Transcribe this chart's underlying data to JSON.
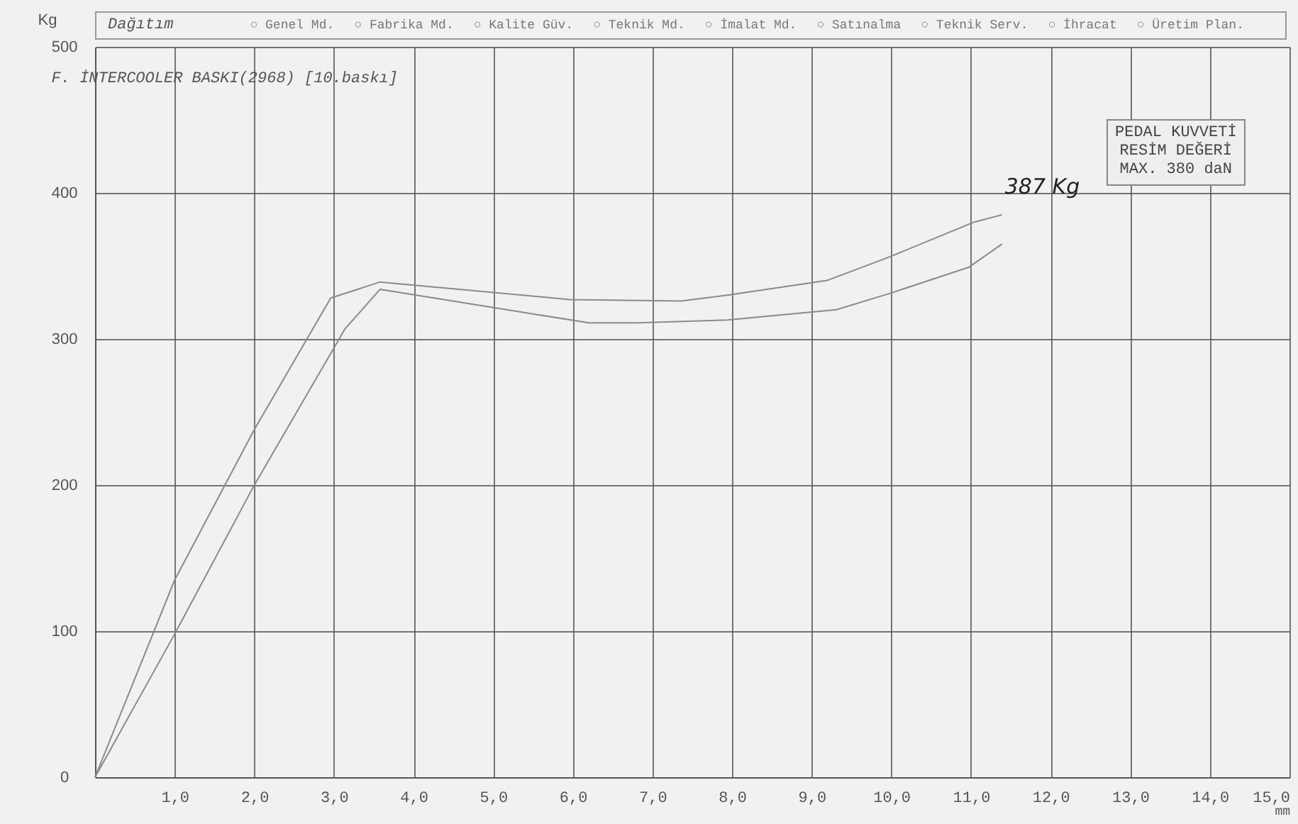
{
  "chart_data": {
    "type": "line",
    "title": "F. İNTERCOOLER BASKI(2968)   [10.baskı]",
    "xlabel": "mm",
    "ylabel": "Kg",
    "annotations": [
      "Dağıtım",
      "○ Genel Md.",
      "○ Fabrika Md.",
      "○ Kalite Güv.",
      "○ Teknik Md.",
      "○ İmalat Md.",
      "○ Satınalma",
      "○ Teknik Serv.",
      "○ İhracat",
      "○ Üretim Plan.",
      {
        "text": "387 Kg",
        "x": 11.39,
        "y": 385
      },
      "PEDAL KUVVETİ\nRESİM DEĞERİ\nMAX. 380 daN"
    ],
    "xlim": [
      0,
      15
    ],
    "ylim": [
      0,
      500
    ],
    "xticks": [
      {
        "value": 1,
        "label": "1,0"
      },
      {
        "value": 2,
        "label": "2,0"
      },
      {
        "value": 3,
        "label": "3,0"
      },
      {
        "value": 4,
        "label": "4,0"
      },
      {
        "value": 5,
        "label": "5,0"
      },
      {
        "value": 6,
        "label": "6,0"
      },
      {
        "value": 7,
        "label": "7,0"
      },
      {
        "value": 8,
        "label": "8,0"
      },
      {
        "value": 9,
        "label": "9,0"
      },
      {
        "value": 10,
        "label": "10,0"
      },
      {
        "value": 11,
        "label": "11,0"
      },
      {
        "value": 12,
        "label": "12,0"
      },
      {
        "value": 13,
        "label": "13,0"
      },
      {
        "value": 14,
        "label": "14,0"
      },
      {
        "value": 15,
        "label": "15,0"
      }
    ],
    "yticks": [
      0,
      100,
      200,
      300,
      400,
      500
    ],
    "grid": true,
    "line_style": "solid",
    "series": [
      {
        "color": "#8a8a8a",
        "x": [
          0,
          1.0,
          2.0,
          2.96,
          3.58,
          5.96,
          7.36,
          7.94,
          9.19,
          9.97,
          11.04,
          11.39
        ],
        "values": [
          0,
          135,
          238,
          328,
          339,
          327,
          326,
          330,
          340,
          356,
          380,
          385
        ]
      },
      {
        "color": "#8a8a8a",
        "x": [
          0,
          1.0,
          1.98,
          3.14,
          3.58,
          6.2,
          6.82,
          7.94,
          9.31,
          9.97,
          10.97,
          11.39
        ],
        "values": [
          0,
          98,
          198,
          307,
          334,
          311,
          311,
          313,
          320,
          331,
          349,
          365
        ]
      }
    ]
  }
}
